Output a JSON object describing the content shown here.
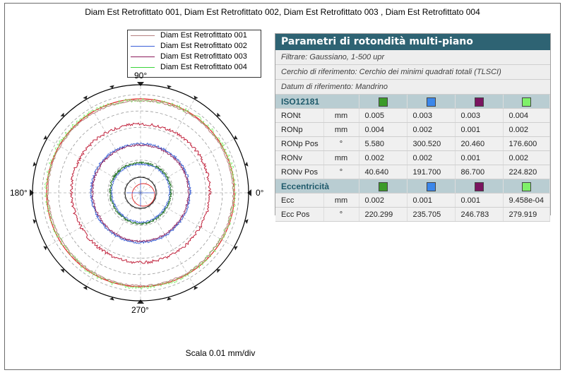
{
  "title": "Diam Est Retrofittato 001, Diam Est Retrofittato 002, Diam Est Retrofittato 003 , Diam Est Retrofittato 004",
  "legend": [
    {
      "label": "Diam Est Retrofittato 001",
      "color": "#b58080"
    },
    {
      "label": "Diam Est Retrofittato 002",
      "color": "#3a5fd8"
    },
    {
      "label": "Diam Est Retrofittato 003",
      "color": "#8b1a5a"
    },
    {
      "label": "Diam Est Retrofittato 004",
      "color": "#3ad43a"
    }
  ],
  "angles": {
    "top": "90°",
    "left": "180°",
    "right": "0°",
    "bottom": "270°"
  },
  "scale": "Scala 0.01 mm/div",
  "panel": {
    "title": "Parametri di rotondità multi-piano",
    "filter": "Filtrare: Gaussiano, 1-500 upr",
    "reference": "Cerchio di riferimento: Cerchio dei minimi quadrati totali (TLSCI)",
    "datum": "Datum di riferimento: Mandrino",
    "section1": "ISO12181",
    "section2": "Eccentricità",
    "swatches": [
      "#3b9b2a",
      "#3b87ea",
      "#7a1560",
      "#7ff06a"
    ],
    "rows1": [
      {
        "name": "RONt",
        "unit": "mm",
        "values": [
          "0.005",
          "0.003",
          "0.003",
          "0.004"
        ]
      },
      {
        "name": "RONp",
        "unit": "mm",
        "values": [
          "0.004",
          "0.002",
          "0.001",
          "0.002"
        ]
      },
      {
        "name": "RONp Pos",
        "unit": "°",
        "values": [
          "5.580",
          "300.520",
          "20.460",
          "176.600"
        ]
      },
      {
        "name": "RONv",
        "unit": "mm",
        "values": [
          "0.002",
          "0.002",
          "0.001",
          "0.002"
        ]
      },
      {
        "name": "RONv Pos",
        "unit": "°",
        "values": [
          "40.640",
          "191.700",
          "86.700",
          "224.820"
        ]
      }
    ],
    "rows2": [
      {
        "name": "Ecc",
        "unit": "mm",
        "values": [
          "0.002",
          "0.001",
          "0.001",
          "9.458e-04"
        ]
      },
      {
        "name": "Ecc Pos",
        "unit": "°",
        "values": [
          "220.299",
          "235.705",
          "246.783",
          "279.919"
        ]
      }
    ]
  }
}
